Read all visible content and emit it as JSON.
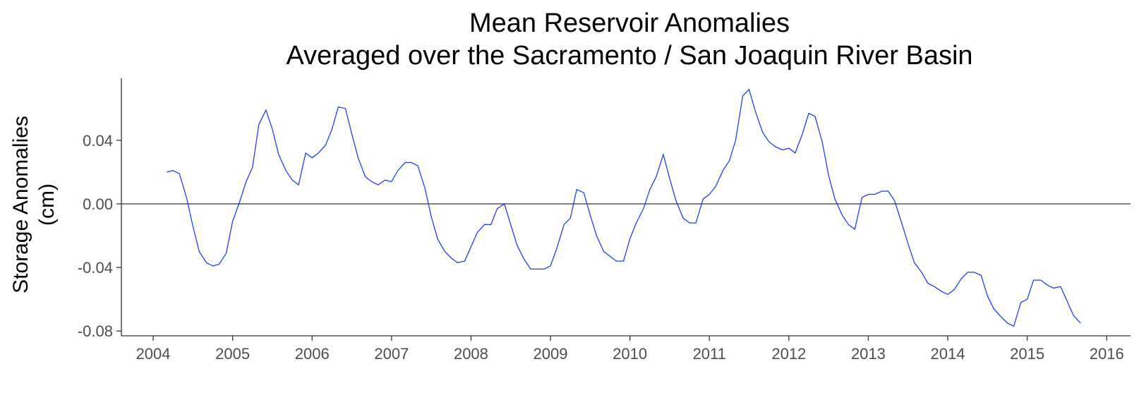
{
  "chart_data": {
    "type": "line",
    "title_lines": [
      "Mean Reservoir Anomalies",
      "Averaged over the Sacramento / San Joaquin River Basin"
    ],
    "xlabel": "",
    "ylabel_lines": [
      "Storage Anomalies",
      "(cm)"
    ],
    "xlim": [
      2003.6,
      2016.3
    ],
    "ylim": [
      -0.083,
      0.079
    ],
    "x_ticks": [
      2004,
      2005,
      2006,
      2007,
      2008,
      2009,
      2010,
      2011,
      2012,
      2013,
      2014,
      2015,
      2016
    ],
    "x_tick_labels": [
      "2004",
      "2005",
      "2006",
      "2007",
      "2008",
      "2009",
      "2010",
      "2011",
      "2012",
      "2013",
      "2014",
      "2015",
      "2016"
    ],
    "y_ticks": [
      -0.08,
      -0.04,
      0.0,
      0.04
    ],
    "y_tick_labels": [
      "-0.08",
      "-0.04",
      "0.00",
      "0.04"
    ],
    "reference_line_y": 0.0,
    "grid": false,
    "line_color": "#1f3ff0",
    "series": [
      {
        "x": [
          2004.17,
          2004.25,
          2004.33,
          2004.42,
          2004.5,
          2004.58,
          2004.67,
          2004.75,
          2004.83,
          2004.92,
          2005.0,
          2005.08,
          2005.17,
          2005.25,
          2005.33,
          2005.42,
          2005.5,
          2005.58,
          2005.67,
          2005.75,
          2005.83,
          2005.92,
          2006.0,
          2006.08,
          2006.17,
          2006.25,
          2006.33,
          2006.42,
          2006.5,
          2006.58,
          2006.67,
          2006.75,
          2006.83,
          2006.92,
          2007.0,
          2007.08,
          2007.17,
          2007.25,
          2007.33,
          2007.42,
          2007.5,
          2007.58,
          2007.67,
          2007.75,
          2007.83,
          2007.92,
          2008.0,
          2008.08,
          2008.17,
          2008.25,
          2008.33,
          2008.42,
          2008.5,
          2008.58,
          2008.67,
          2008.75,
          2008.83,
          2008.92,
          2009.0,
          2009.08,
          2009.17,
          2009.25,
          2009.33,
          2009.42,
          2009.5,
          2009.58,
          2009.67,
          2009.75,
          2009.83,
          2009.92,
          2010.0,
          2010.08,
          2010.17,
          2010.25,
          2010.33,
          2010.42,
          2010.5,
          2010.58,
          2010.67,
          2010.75,
          2010.83,
          2010.92,
          2011.0,
          2011.08,
          2011.17,
          2011.25,
          2011.33,
          2011.42,
          2011.5,
          2011.58,
          2011.67,
          2011.75,
          2011.83,
          2011.92,
          2012.0,
          2012.08,
          2012.17,
          2012.25,
          2012.33,
          2012.42,
          2012.5,
          2012.58,
          2012.67,
          2012.75,
          2012.83,
          2012.92,
          2013.0,
          2013.08,
          2013.17,
          2013.25,
          2013.33,
          2013.42,
          2013.5,
          2013.58,
          2013.67,
          2013.75,
          2013.83,
          2013.92,
          2014.0,
          2014.08,
          2014.17,
          2014.25,
          2014.33,
          2014.42,
          2014.5,
          2014.58,
          2014.67,
          2014.75,
          2014.83,
          2014.92,
          2015.0,
          2015.08,
          2015.17,
          2015.25,
          2015.33,
          2015.42,
          2015.5,
          2015.58,
          2015.67
        ],
        "values": [
          0.02,
          0.021,
          0.019,
          0.004,
          -0.014,
          -0.03,
          -0.037,
          -0.039,
          -0.038,
          -0.031,
          -0.011,
          0.0,
          0.014,
          0.023,
          0.05,
          0.059,
          0.047,
          0.031,
          0.021,
          0.015,
          0.012,
          0.032,
          0.029,
          0.032,
          0.037,
          0.047,
          0.061,
          0.06,
          0.044,
          0.029,
          0.017,
          0.014,
          0.012,
          0.015,
          0.014,
          0.021,
          0.026,
          0.026,
          0.024,
          0.01,
          -0.008,
          -0.022,
          -0.03,
          -0.034,
          -0.037,
          -0.036,
          -0.027,
          -0.018,
          -0.013,
          -0.013,
          -0.003,
          0.0,
          -0.013,
          -0.026,
          -0.035,
          -0.041,
          -0.041,
          -0.041,
          -0.039,
          -0.028,
          -0.013,
          -0.009,
          0.009,
          0.007,
          -0.007,
          -0.02,
          -0.03,
          -0.033,
          -0.036,
          -0.036,
          -0.022,
          -0.012,
          -0.003,
          0.009,
          0.017,
          0.031,
          0.016,
          0.002,
          -0.009,
          -0.012,
          -0.012,
          0.003,
          0.006,
          0.011,
          0.021,
          0.027,
          0.04,
          0.068,
          0.072,
          0.058,
          0.045,
          0.039,
          0.036,
          0.034,
          0.035,
          0.032,
          0.044,
          0.057,
          0.055,
          0.039,
          0.018,
          0.003,
          -0.007,
          -0.013,
          -0.016,
          0.004,
          0.006,
          0.006,
          0.008,
          0.008,
          0.002,
          -0.012,
          -0.025,
          -0.037,
          -0.043,
          -0.05,
          -0.052,
          -0.055,
          -0.057,
          -0.054,
          -0.047,
          -0.043,
          -0.043,
          -0.045,
          -0.058,
          -0.066,
          -0.071,
          -0.075,
          -0.077,
          -0.062,
          -0.06,
          -0.048,
          -0.048,
          -0.051,
          -0.053,
          -0.052,
          -0.061,
          -0.07,
          -0.075
        ]
      }
    ]
  }
}
